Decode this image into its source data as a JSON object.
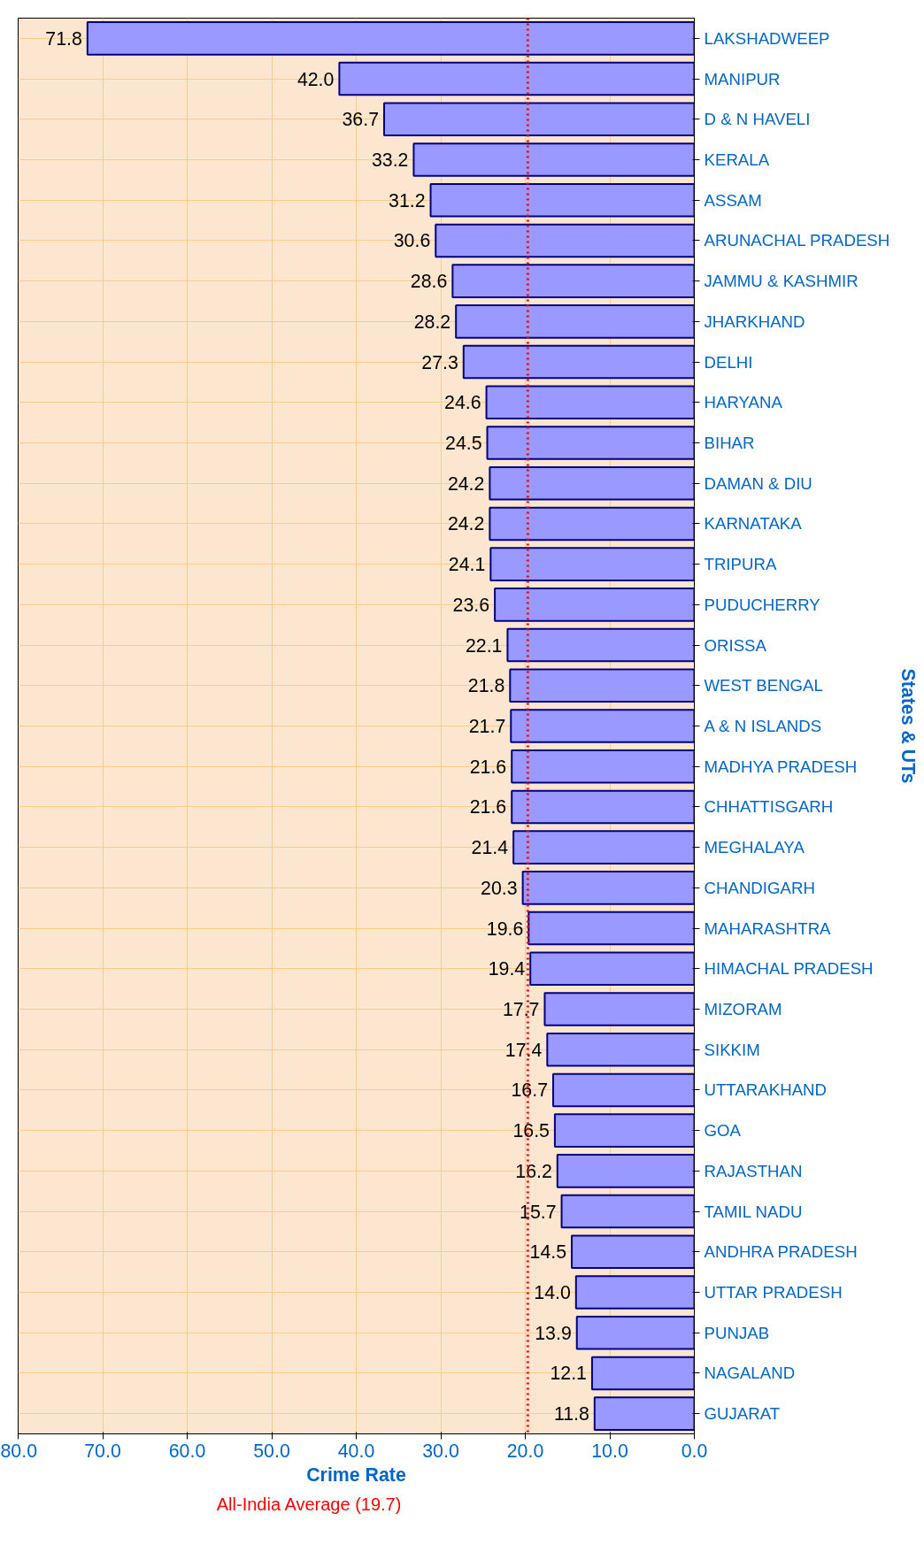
{
  "chart_data": {
    "type": "bar",
    "orientation": "horizontal",
    "xlabel": "Crime Rate",
    "ylabel": "States & UTs",
    "categories": [
      "LAKSHADWEEP",
      "MANIPUR",
      "D & N HAVELI",
      "KERALA",
      "ASSAM",
      "ARUNACHAL PRADESH",
      "JAMMU & KASHMIR",
      "JHARKHAND",
      "DELHI",
      "HARYANA",
      "BIHAR",
      "DAMAN & DIU",
      "KARNATAKA",
      "TRIPURA",
      "PUDUCHERRY",
      "ORISSA",
      "WEST BENGAL",
      "A & N ISLANDS",
      "MADHYA PRADESH",
      "CHHATTISGARH",
      "MEGHALAYA",
      "CHANDIGARH",
      "MAHARASHTRA",
      "HIMACHAL PRADESH",
      "MIZORAM",
      "SIKKIM",
      "UTTARAKHAND",
      "GOA",
      "RAJASTHAN",
      "TAMIL NADU",
      "ANDHRA PRADESH",
      "UTTAR PRADESH",
      "PUNJAB",
      "NAGALAND",
      "GUJARAT"
    ],
    "values": [
      71.8,
      42.0,
      36.7,
      33.2,
      31.2,
      30.6,
      28.6,
      28.2,
      27.3,
      24.6,
      24.5,
      24.2,
      24.2,
      24.1,
      23.6,
      22.1,
      21.8,
      21.7,
      21.6,
      21.6,
      21.4,
      20.3,
      19.6,
      19.4,
      17.7,
      17.4,
      16.7,
      16.5,
      16.2,
      15.7,
      14.5,
      14.0,
      13.9,
      12.1,
      11.8
    ],
    "value_labels": [
      "71.8",
      "42.0",
      "36.7",
      "33.2",
      "31.2",
      "30.6",
      "28.6",
      "28.2",
      "27.3",
      "24.6",
      "24.5",
      "24.2",
      "24.2",
      "24.1",
      "23.6",
      "22.1",
      "21.8",
      "21.7",
      "21.6",
      "21.6",
      "21.4",
      "20.3",
      "19.6",
      "19.4",
      "17.7",
      "17.4",
      "16.7",
      "16.5",
      "16.2",
      "15.7",
      "14.5",
      "14.0",
      "13.9",
      "12.1",
      "11.8"
    ],
    "color": "#9999ff",
    "xlim": [
      80,
      0
    ],
    "xticks": [
      {
        "value": 0,
        "label": "0.0"
      },
      {
        "value": 10,
        "label": "10.0"
      },
      {
        "value": 20,
        "label": "20.0"
      },
      {
        "value": 30,
        "label": "30.0"
      },
      {
        "value": 40,
        "label": "40.0"
      },
      {
        "value": 50,
        "label": "50.0"
      },
      {
        "value": 60,
        "label": "60.0"
      },
      {
        "value": 70,
        "label": "70.0"
      },
      {
        "value": 80,
        "label": "80.0"
      }
    ],
    "ref_lines": [
      {
        "axis": "x",
        "value": 19.7,
        "label": "All-India Average (19.7)",
        "color": "#ff0000",
        "line_style": "dotted"
      }
    ],
    "grid": true
  }
}
